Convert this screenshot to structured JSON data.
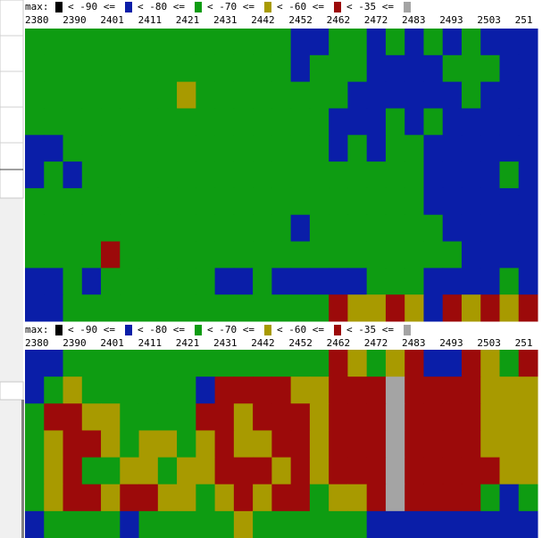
{
  "palette": [
    "#000000",
    "#0a1ea8",
    "#0e9c12",
    "#a89a00",
    "#9c0a0a",
    "#a4a4a4"
  ],
  "panels": [
    {
      "legend": {
        "prefix": "max:",
        "labels": [
          "< -90 <=",
          "< -80 <=",
          "< -70 <=",
          "< -60 <=",
          "< -35 <="
        ]
      },
      "axis_labels": [
        "2380",
        "2390",
        "2401",
        "2411",
        "2421",
        "2431",
        "2442",
        "2452",
        "2462",
        "2472",
        "2483",
        "2493",
        "2503",
        "251"
      ],
      "rows": [
        [
          2,
          2,
          2,
          2,
          2,
          2,
          2,
          2,
          2,
          2,
          2,
          2,
          2,
          2,
          1,
          1,
          2,
          2,
          1,
          2,
          1,
          2,
          1,
          2,
          1,
          1,
          1
        ],
        [
          2,
          2,
          2,
          2,
          2,
          2,
          2,
          2,
          2,
          2,
          2,
          2,
          2,
          2,
          1,
          2,
          2,
          2,
          1,
          1,
          1,
          1,
          2,
          2,
          2,
          1,
          1
        ],
        [
          2,
          2,
          2,
          2,
          2,
          2,
          2,
          2,
          3,
          2,
          2,
          2,
          2,
          2,
          2,
          2,
          2,
          1,
          1,
          1,
          1,
          1,
          1,
          2,
          1,
          1,
          1
        ],
        [
          2,
          2,
          2,
          2,
          2,
          2,
          2,
          2,
          2,
          2,
          2,
          2,
          2,
          2,
          2,
          2,
          1,
          1,
          1,
          2,
          1,
          2,
          1,
          1,
          1,
          1,
          1
        ],
        [
          1,
          1,
          2,
          2,
          2,
          2,
          2,
          2,
          2,
          2,
          2,
          2,
          2,
          2,
          2,
          2,
          1,
          2,
          1,
          2,
          2,
          1,
          1,
          1,
          1,
          1,
          1
        ],
        [
          1,
          2,
          1,
          2,
          2,
          2,
          2,
          2,
          2,
          2,
          2,
          2,
          2,
          2,
          2,
          2,
          2,
          2,
          2,
          2,
          2,
          1,
          1,
          1,
          1,
          2,
          1
        ],
        [
          2,
          2,
          2,
          2,
          2,
          2,
          2,
          2,
          2,
          2,
          2,
          2,
          2,
          2,
          2,
          2,
          2,
          2,
          2,
          2,
          2,
          1,
          1,
          1,
          1,
          1,
          1
        ],
        [
          2,
          2,
          2,
          2,
          2,
          2,
          2,
          2,
          2,
          2,
          2,
          2,
          2,
          2,
          1,
          2,
          2,
          2,
          2,
          2,
          2,
          2,
          1,
          1,
          1,
          1,
          1
        ],
        [
          2,
          2,
          2,
          2,
          4,
          2,
          2,
          2,
          2,
          2,
          2,
          2,
          2,
          2,
          2,
          2,
          2,
          2,
          2,
          2,
          2,
          2,
          2,
          1,
          1,
          1,
          1
        ],
        [
          1,
          1,
          2,
          1,
          2,
          2,
          2,
          2,
          2,
          2,
          1,
          1,
          2,
          1,
          1,
          1,
          1,
          1,
          2,
          2,
          2,
          1,
          1,
          1,
          1,
          2,
          1
        ],
        [
          1,
          1,
          2,
          2,
          2,
          2,
          2,
          2,
          2,
          2,
          2,
          2,
          2,
          2,
          2,
          2,
          4,
          3,
          3,
          4,
          3,
          1,
          4,
          3,
          4,
          3,
          4
        ]
      ]
    },
    {
      "legend": {
        "prefix": "max:",
        "labels": [
          "< -90 <=",
          "< -80 <=",
          "< -70 <=",
          "< -60 <=",
          "< -35 <="
        ]
      },
      "axis_labels": [
        "2380",
        "2390",
        "2401",
        "2411",
        "2421",
        "2431",
        "2442",
        "2452",
        "2462",
        "2472",
        "2483",
        "2493",
        "2503",
        "251"
      ],
      "rows": [
        [
          1,
          1,
          2,
          2,
          2,
          2,
          2,
          2,
          2,
          2,
          2,
          2,
          2,
          2,
          2,
          2,
          4,
          3,
          2,
          3,
          4,
          1,
          1,
          4,
          3,
          2,
          4
        ],
        [
          1,
          2,
          3,
          2,
          2,
          2,
          2,
          2,
          2,
          1,
          4,
          4,
          4,
          4,
          3,
          3,
          4,
          4,
          4,
          5,
          4,
          4,
          4,
          4,
          3,
          3,
          3
        ],
        [
          2,
          4,
          4,
          3,
          3,
          2,
          2,
          2,
          2,
          4,
          4,
          3,
          4,
          4,
          4,
          3,
          4,
          4,
          4,
          5,
          4,
          4,
          4,
          4,
          3,
          3,
          3
        ],
        [
          2,
          3,
          4,
          4,
          3,
          2,
          3,
          3,
          2,
          3,
          4,
          3,
          3,
          4,
          4,
          3,
          4,
          4,
          4,
          5,
          4,
          4,
          4,
          4,
          3,
          3,
          3
        ],
        [
          2,
          3,
          4,
          2,
          2,
          3,
          3,
          2,
          3,
          3,
          4,
          4,
          4,
          3,
          4,
          3,
          4,
          4,
          4,
          5,
          4,
          4,
          4,
          4,
          4,
          3,
          3
        ],
        [
          2,
          3,
          4,
          4,
          3,
          4,
          4,
          3,
          3,
          2,
          3,
          4,
          3,
          4,
          4,
          2,
          3,
          3,
          4,
          5,
          4,
          4,
          4,
          4,
          2,
          1,
          2
        ],
        [
          1,
          2,
          2,
          2,
          2,
          1,
          2,
          2,
          2,
          2,
          2,
          3,
          2,
          2,
          2,
          2,
          2,
          2,
          1,
          1,
          1,
          1,
          1,
          1,
          1,
          1,
          1
        ]
      ]
    }
  ]
}
